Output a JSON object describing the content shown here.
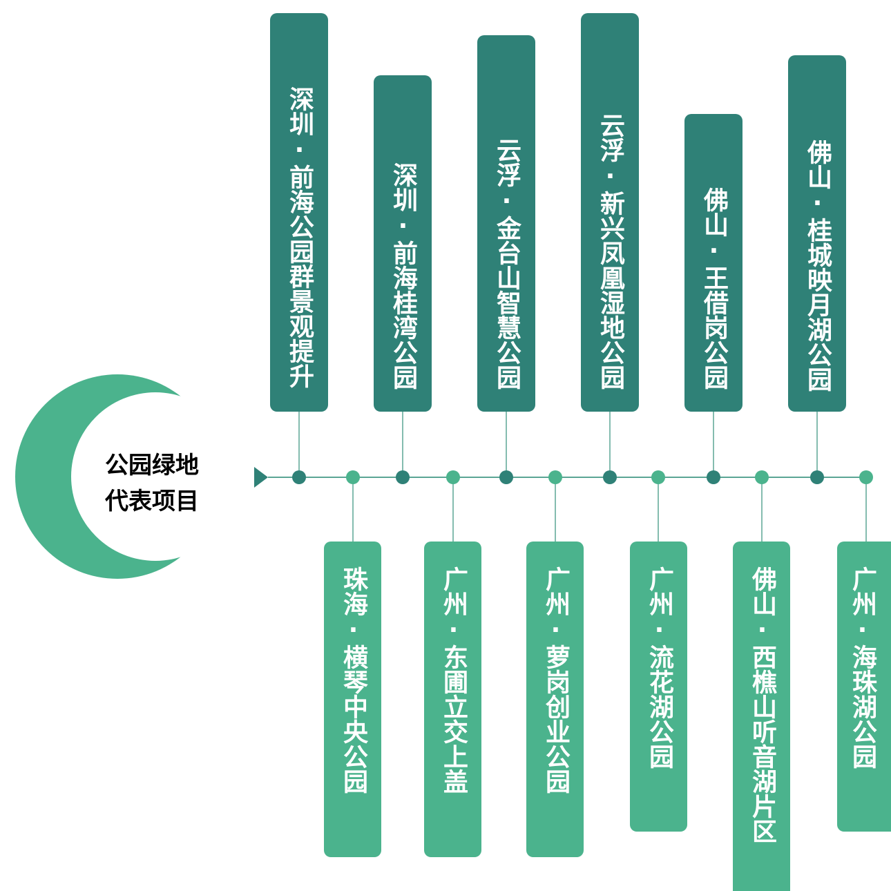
{
  "center": {
    "line1": "公园绿地",
    "line2": "代表项目"
  },
  "colors": {
    "top": "#2f8177",
    "bottom": "#4bb38d",
    "line": "#5aa594"
  },
  "top_projects": [
    "深圳·前海公园群景观提升",
    "深圳·前海桂湾公园",
    "云浮·金台山智慧公园",
    "云浮·新兴凤凰湿地公园",
    "佛山·王借岗公园",
    "佛山·桂城映月湖公园"
  ],
  "bottom_projects": [
    "珠海·横琴中央公园",
    "广州·东圃立交上盖",
    "广州·萝岗创业公园",
    "广州·流花湖公园",
    "佛山·西樵山听音湖片区",
    "广州·海珠湖公园"
  ]
}
